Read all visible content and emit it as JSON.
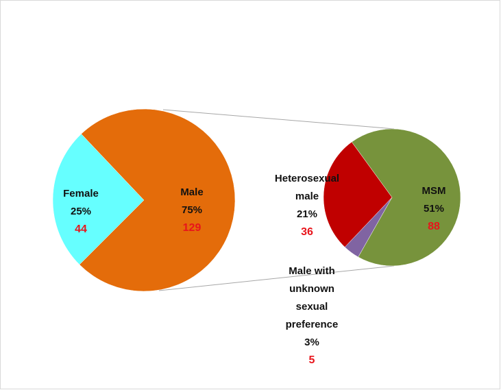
{
  "chart_data": {
    "type": "pie-of-pie",
    "primary": {
      "categories": [
        "Female",
        "Male"
      ],
      "values": [
        44,
        129
      ],
      "percent_labels": [
        "25%",
        "75%"
      ],
      "colors": [
        "#66ffff",
        "#e46c0a"
      ]
    },
    "secondary": {
      "categories": [
        "MSM",
        "Male with unknown sexual preference",
        "Heterosexual male"
      ],
      "values": [
        88,
        5,
        36
      ],
      "percent_labels": [
        "51%",
        "3%",
        "21%"
      ],
      "colors": [
        "#77933c",
        "#8064a2",
        "#c00000"
      ]
    }
  }
}
